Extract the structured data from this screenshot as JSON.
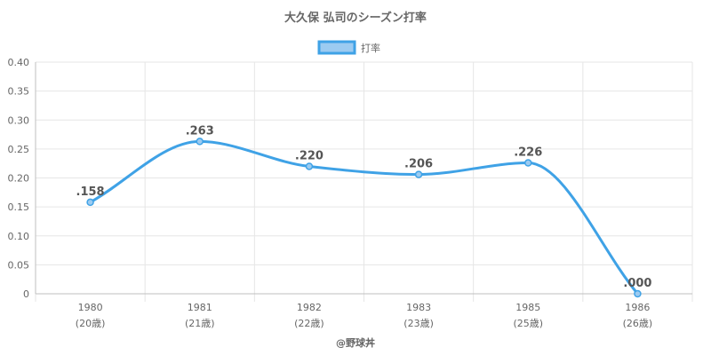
{
  "chart_data": {
    "type": "line",
    "title": "大久保 弘司のシーズン打率",
    "categories": [
      "1980",
      "1981",
      "1982",
      "1983",
      "1985",
      "1986"
    ],
    "category_sublabels": [
      "(20歳)",
      "(21歳)",
      "(22歳)",
      "(23歳)",
      "(25歳)",
      "(26歳)"
    ],
    "series": [
      {
        "name": "打率",
        "values": [
          0.158,
          0.263,
          0.22,
          0.206,
          0.226,
          0.0
        ],
        "value_labels": [
          ".158",
          ".263",
          ".220",
          ".206",
          ".226",
          ".000"
        ],
        "color": "#3fa2e6",
        "fill": "#9ccbf1"
      }
    ],
    "ylim": [
      0,
      0.4
    ],
    "yticks": [
      0,
      0.05,
      0.1,
      0.15,
      0.2,
      0.25,
      0.3,
      0.35,
      0.4
    ],
    "ytick_labels": [
      "0",
      "0.05",
      "0.10",
      "0.15",
      "0.20",
      "0.25",
      "0.30",
      "0.35",
      "0.40"
    ],
    "grid": true,
    "legend_position": "top"
  },
  "credit": "@野球丼"
}
